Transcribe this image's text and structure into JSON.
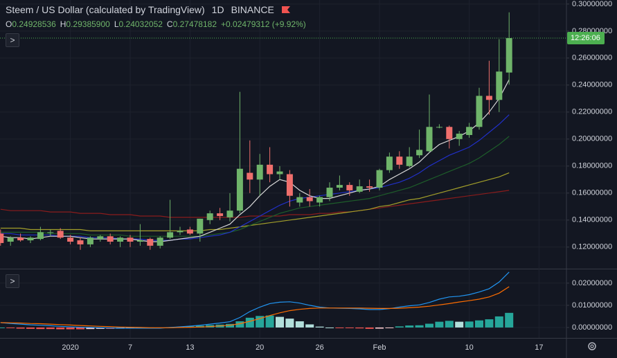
{
  "header": {
    "symbol": "Steem / US Dollar (calculated by TradingView)",
    "interval": "1D",
    "exchange": "BINANCE",
    "ohlc": [
      {
        "label": "O",
        "value": "0.24928536"
      },
      {
        "label": "H",
        "value": "0.29385900"
      },
      {
        "label": "L",
        "value": "0.24032052"
      },
      {
        "label": "C",
        "value": "0.27478182"
      }
    ],
    "change": "+0.02479312 (+9.92%)"
  },
  "countdown": "12:26:06",
  "chart_data": [
    {
      "type": "candlestick",
      "categories": [
        null,
        null,
        null,
        null,
        null,
        null,
        null,
        "2020",
        null,
        null,
        null,
        null,
        null,
        "7",
        null,
        null,
        null,
        null,
        null,
        "13",
        null,
        null,
        null,
        null,
        null,
        null,
        "20",
        null,
        null,
        null,
        null,
        null,
        "26",
        null,
        null,
        null,
        null,
        null,
        "Feb",
        null,
        null,
        null,
        null,
        null,
        null,
        null,
        null,
        "10",
        null,
        null,
        null,
        null,
        null,
        null,
        "17",
        null,
        null
      ],
      "open": [
        0.13,
        0.124,
        0.127,
        0.125,
        0.126,
        0.131,
        0.132,
        0.127,
        0.125,
        0.122,
        0.126,
        0.128,
        0.124,
        0.127,
        0.124,
        0.126,
        0.121,
        0.127,
        0.131,
        0.133,
        0.13,
        0.14,
        0.145,
        0.142,
        0.147,
        0.175,
        0.17,
        0.181,
        0.174,
        0.174,
        0.153,
        0.157,
        0.153,
        0.157,
        0.164,
        0.166,
        0.161,
        0.165,
        0.164,
        0.177,
        0.187,
        0.18,
        0.188,
        0.191,
        0.209,
        0.209,
        0.2,
        0.203,
        0.209,
        0.232,
        0.229,
        0.24928536,
        null,
        null,
        null,
        null,
        null
      ],
      "high": [
        0.133,
        0.128,
        0.13,
        0.128,
        0.135,
        0.133,
        0.134,
        0.129,
        0.127,
        0.128,
        0.129,
        0.13,
        0.128,
        0.129,
        0.137,
        0.127,
        0.128,
        0.155,
        0.135,
        0.135,
        0.141,
        0.147,
        0.149,
        0.16,
        0.235,
        0.199,
        0.189,
        0.194,
        0.18,
        0.177,
        0.16,
        0.163,
        0.158,
        0.168,
        0.173,
        0.168,
        0.17,
        0.17,
        0.178,
        0.19,
        0.191,
        0.194,
        0.207,
        0.233,
        0.211,
        0.21,
        0.206,
        0.212,
        0.238,
        0.258,
        0.274,
        0.293859,
        null,
        null,
        null,
        null,
        null
      ],
      "low": [
        0.121,
        0.121,
        0.124,
        0.123,
        0.125,
        0.128,
        0.126,
        0.122,
        0.118,
        0.12,
        0.124,
        0.122,
        0.12,
        0.12,
        0.121,
        0.118,
        0.119,
        0.126,
        0.129,
        0.129,
        0.124,
        0.137,
        0.14,
        0.139,
        0.145,
        0.16,
        0.158,
        0.168,
        0.17,
        0.15,
        0.15,
        0.15,
        0.15,
        0.154,
        0.162,
        0.158,
        0.16,
        0.161,
        0.162,
        0.175,
        0.178,
        0.179,
        0.186,
        0.19,
        0.208,
        0.193,
        0.195,
        0.201,
        0.207,
        0.218,
        0.22,
        0.24032052,
        null,
        null,
        null,
        null,
        null
      ],
      "close": [
        0.123,
        0.127,
        0.125,
        0.127,
        0.131,
        0.131,
        0.127,
        0.124,
        0.122,
        0.127,
        0.128,
        0.124,
        0.127,
        0.124,
        0.125,
        0.121,
        0.127,
        0.131,
        0.132,
        0.13,
        0.141,
        0.145,
        0.143,
        0.147,
        0.178,
        0.17,
        0.181,
        0.174,
        0.176,
        0.158,
        0.157,
        0.154,
        0.157,
        0.164,
        0.166,
        0.162,
        0.165,
        0.164,
        0.177,
        0.187,
        0.181,
        0.187,
        0.192,
        0.209,
        0.209,
        0.2,
        0.204,
        0.209,
        0.232,
        0.229,
        0.25,
        0.27478182,
        null,
        null,
        null,
        null,
        null
      ],
      "up_color": "#6fb46a",
      "down_color": "#ef6f6c",
      "series": [
        {
          "color": "#8b1c1c",
          "values": [
            0.148,
            0.147,
            0.147,
            0.147,
            0.147,
            0.146,
            0.146,
            0.146,
            0.145,
            0.145,
            0.145,
            0.144,
            0.144,
            0.144,
            0.143,
            0.143,
            0.143,
            0.142,
            0.142,
            0.142,
            0.142,
            0.142,
            0.142,
            0.142,
            0.142,
            0.143,
            0.143,
            0.143,
            0.143,
            0.144,
            0.144,
            0.144,
            0.145,
            0.145,
            0.146,
            0.146,
            0.147,
            0.148,
            0.149,
            0.15,
            0.151,
            0.152,
            0.153,
            0.154,
            0.155,
            0.156,
            0.157,
            0.158,
            0.159,
            0.16,
            0.161,
            0.162,
            null,
            null,
            null,
            null,
            null
          ]
        },
        {
          "color": "#a39f2a",
          "values": [
            0.134,
            0.134,
            0.134,
            0.133,
            0.133,
            0.133,
            0.133,
            0.133,
            0.133,
            0.132,
            0.132,
            0.132,
            0.132,
            0.132,
            0.132,
            0.132,
            0.132,
            0.132,
            0.132,
            0.132,
            0.132,
            0.133,
            0.133,
            0.134,
            0.135,
            0.136,
            0.137,
            0.138,
            0.139,
            0.14,
            0.141,
            0.142,
            0.143,
            0.144,
            0.145,
            0.146,
            0.147,
            0.148,
            0.15,
            0.151,
            0.153,
            0.155,
            0.156,
            0.158,
            0.16,
            0.162,
            0.164,
            0.166,
            0.168,
            0.17,
            0.172,
            0.175,
            null,
            null,
            null,
            null,
            null
          ]
        },
        {
          "color": "#1e5e2a",
          "values": [
            0.131,
            0.131,
            0.131,
            0.131,
            0.131,
            0.13,
            0.13,
            0.13,
            0.13,
            0.129,
            0.129,
            0.129,
            0.129,
            0.128,
            0.128,
            0.128,
            0.128,
            0.128,
            0.128,
            0.128,
            0.128,
            0.129,
            0.13,
            0.131,
            0.133,
            0.136,
            0.139,
            0.142,
            0.145,
            0.147,
            0.149,
            0.15,
            0.151,
            0.152,
            0.153,
            0.154,
            0.155,
            0.156,
            0.158,
            0.16,
            0.162,
            0.164,
            0.167,
            0.17,
            0.173,
            0.176,
            0.179,
            0.182,
            0.186,
            0.191,
            0.196,
            0.202,
            null,
            null,
            null,
            null,
            null
          ]
        },
        {
          "color": "#2130c8",
          "values": [
            0.13,
            0.13,
            0.129,
            0.129,
            0.129,
            0.129,
            0.128,
            0.128,
            0.128,
            0.127,
            0.127,
            0.127,
            0.126,
            0.126,
            0.126,
            0.125,
            0.125,
            0.125,
            0.126,
            0.126,
            0.127,
            0.128,
            0.129,
            0.131,
            0.135,
            0.139,
            0.143,
            0.147,
            0.151,
            0.154,
            0.156,
            0.157,
            0.158,
            0.159,
            0.16,
            0.161,
            0.162,
            0.163,
            0.164,
            0.166,
            0.168,
            0.171,
            0.175,
            0.18,
            0.184,
            0.188,
            0.191,
            0.194,
            0.199,
            0.205,
            0.211,
            0.218,
            null,
            null,
            null,
            null,
            null
          ]
        },
        {
          "color": "#d8d8d8",
          "values": [
            0.128,
            0.127,
            0.127,
            0.126,
            0.127,
            0.128,
            0.128,
            0.128,
            0.127,
            0.126,
            0.126,
            0.126,
            0.126,
            0.126,
            0.125,
            0.124,
            0.124,
            0.125,
            0.126,
            0.127,
            0.128,
            0.131,
            0.134,
            0.137,
            0.144,
            0.15,
            0.158,
            0.165,
            0.17,
            0.168,
            0.162,
            0.158,
            0.156,
            0.156,
            0.158,
            0.16,
            0.162,
            0.163,
            0.165,
            0.17,
            0.174,
            0.178,
            0.183,
            0.19,
            0.196,
            0.199,
            0.202,
            0.206,
            0.212,
            0.22,
            0.23,
            0.244,
            null,
            null,
            null,
            null,
            null
          ]
        }
      ],
      "ylim": [
        0.104,
        0.303
      ],
      "yticks": [
        {
          "value": 0.12,
          "label": "0.12000000"
        },
        {
          "value": 0.14,
          "label": "0.14000000"
        },
        {
          "value": 0.16,
          "label": "0.16000000"
        },
        {
          "value": 0.18,
          "label": "0.18000000"
        },
        {
          "value": 0.2,
          "label": "0.20000000"
        },
        {
          "value": 0.22,
          "label": "0.22000000"
        },
        {
          "value": 0.24,
          "label": "0.24000000"
        },
        {
          "value": 0.26,
          "label": "0.26000000"
        },
        {
          "value": 0.28,
          "label": "0.28000000"
        },
        {
          "value": 0.3,
          "label": "0.30000000"
        }
      ],
      "grid": true,
      "last_color": "#4caf50"
    },
    {
      "type": "macd",
      "values": [
        0.0,
        -0.0003,
        -0.0005,
        -0.0006,
        -0.0007,
        -0.0007,
        -0.0008,
        -0.0008,
        -0.0008,
        -0.0007,
        -0.0006,
        -0.0006,
        -0.0005,
        -0.0004,
        -0.0003,
        -0.0002,
        -0.0002,
        0.0001,
        0.0003,
        0.0005,
        0.0008,
        0.0011,
        0.0013,
        0.0016,
        0.0028,
        0.0044,
        0.0052,
        0.0054,
        0.0048,
        0.004,
        0.0028,
        0.0014,
        0.0004,
        0.0,
        -0.0001,
        -0.0002,
        -0.0004,
        -0.0006,
        -0.0005,
        -0.0001,
        0.0005,
        0.0009,
        0.001,
        0.0017,
        0.0026,
        0.003,
        0.0026,
        0.0027,
        0.0032,
        0.0037,
        0.005,
        0.0066,
        null,
        null,
        null,
        null,
        null
      ],
      "hist_colors": [
        "#26a69a",
        "#b2dfdb",
        "#ffcdd2",
        "#ef5350"
      ],
      "series": [
        {
          "color": "#2196f3",
          "values": [
            0.0022,
            0.0018,
            0.0015,
            0.0012,
            0.001,
            0.0008,
            0.0005,
            0.0003,
            0.0001,
            0.0,
            -0.0001,
            -0.0002,
            -0.0003,
            -0.0003,
            -0.0003,
            -0.0003,
            -0.0003,
            0.0,
            0.0003,
            0.0006,
            0.001,
            0.0015,
            0.002,
            0.0026,
            0.0045,
            0.0072,
            0.0092,
            0.0108,
            0.0114,
            0.0116,
            0.011,
            0.01,
            0.0092,
            0.0088,
            0.0087,
            0.0086,
            0.0084,
            0.0081,
            0.0081,
            0.0085,
            0.0092,
            0.0098,
            0.0102,
            0.0113,
            0.0128,
            0.0138,
            0.0141,
            0.0148,
            0.016,
            0.0175,
            0.0205,
            0.025,
            null,
            null,
            null,
            null,
            null
          ]
        },
        {
          "color": "#ff6d00",
          "values": [
            0.0022,
            0.0021,
            0.002,
            0.0018,
            0.0017,
            0.0015,
            0.0013,
            0.0011,
            0.0009,
            0.0007,
            0.0005,
            0.0004,
            0.0002,
            0.0001,
            0.0,
            -0.0001,
            -0.0001,
            -0.0001,
            0.0,
            0.0001,
            0.0002,
            0.0004,
            0.0007,
            0.001,
            0.0017,
            0.0028,
            0.004,
            0.0054,
            0.0066,
            0.0076,
            0.0082,
            0.0086,
            0.0088,
            0.0088,
            0.0088,
            0.0088,
            0.0088,
            0.0087,
            0.0086,
            0.0086,
            0.0087,
            0.0089,
            0.0092,
            0.0096,
            0.0102,
            0.0108,
            0.0115,
            0.0121,
            0.0128,
            0.0138,
            0.0155,
            0.0184,
            null,
            null,
            null,
            null,
            null
          ]
        }
      ],
      "ylim": [
        -0.0047,
        0.0259
      ],
      "yticks": [
        {
          "value": 0,
          "label": "0.00000000"
        },
        {
          "value": 0.01,
          "label": "0.01000000"
        },
        {
          "value": 0.02,
          "label": "0.02000000"
        }
      ],
      "grid": true
    }
  ]
}
